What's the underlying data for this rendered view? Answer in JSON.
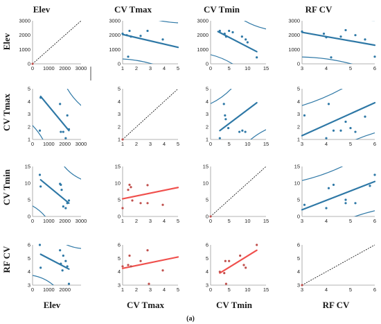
{
  "figure": {
    "caption": "(a)",
    "column_titles": [
      "Elev",
      "CV Tmax",
      "CV Tmin",
      "RF CV"
    ],
    "row_titles": [
      "Elev",
      "CV Tmax",
      "CV Tmin",
      "RF CV"
    ],
    "bottom_labels": [
      "Elev",
      "CV Tmax",
      "CV Tmin",
      "RF CV"
    ]
  },
  "chart_data": {
    "type": "scatter",
    "title": "",
    "variables": [
      "Elev",
      "CV Tmax",
      "CV Tmin",
      "RF CV"
    ],
    "axes": {
      "Elev": {
        "range": [
          0,
          3000
        ],
        "ticks": [
          0,
          1000,
          2000,
          3000
        ],
        "bottom_ticks": [
          0,
          1000,
          2000
        ]
      },
      "CV Tmax": {
        "range": [
          1,
          5
        ],
        "ticks": [
          1,
          2,
          3,
          4,
          5
        ]
      },
      "CV Tmin": {
        "range": [
          0,
          15
        ],
        "ticks": [
          0,
          5,
          10,
          15
        ],
        "left_ticks": [
          0,
          5,
          10,
          15
        ]
      },
      "RF CV": {
        "range": [
          3,
          6
        ],
        "ticks": [
          3,
          4,
          5,
          6
        ]
      }
    },
    "colors": {
      "upper": "#2e78a6",
      "lower_point": "#c0504d",
      "lower_line": "#f0504d",
      "diagonal": "#000000"
    },
    "variable_values": {
      "Elev": [
        450,
        500,
        1700,
        1750,
        1900,
        2050,
        2150,
        2250
      ],
      "CV Tmax": [
        1.7,
        4.3,
        3.8,
        1.6,
        1.6,
        1.1,
        2.9,
        1.8
      ],
      "CV Tmin": [
        12.5,
        9.0,
        9.8,
        9.5,
        3.0,
        2.5,
        4.0,
        4.8
      ],
      "RF CV": [
        6.0,
        4.2,
        5.6,
        4.6,
        5.2,
        4.4,
        4.8,
        3.1
      ]
    },
    "panels": [
      {
        "row": "Elev",
        "col": "CV Tmax",
        "points": [
          [
            1.0,
            2100
          ],
          [
            1.3,
            2000
          ],
          [
            1.5,
            2300
          ],
          [
            1.6,
            1900
          ],
          [
            2.3,
            1950
          ],
          [
            2.8,
            2300
          ],
          [
            3.9,
            1700
          ],
          [
            1.4,
            500
          ]
        ],
        "fit": [
          [
            1.0,
            2050
          ],
          [
            5.0,
            1150
          ]
        ]
      },
      {
        "row": "Elev",
        "col": "CV Tmin",
        "points": [
          [
            2.5,
            2300
          ],
          [
            3.8,
            2100
          ],
          [
            4.2,
            1900
          ],
          [
            5.0,
            2300
          ],
          [
            6.0,
            2200
          ],
          [
            8.5,
            1900
          ],
          [
            9.5,
            1700
          ],
          [
            12.5,
            450
          ],
          [
            10.0,
            1500
          ]
        ],
        "fit": [
          [
            2.0,
            2250
          ],
          [
            12.5,
            850
          ]
        ]
      },
      {
        "row": "Elev",
        "col": "RF CV",
        "points": [
          [
            3.0,
            2250
          ],
          [
            3.9,
            2100
          ],
          [
            4.0,
            1850
          ],
          [
            4.2,
            450
          ],
          [
            4.6,
            1900
          ],
          [
            4.8,
            2350
          ],
          [
            5.2,
            2000
          ],
          [
            5.6,
            1700
          ],
          [
            6.0,
            500
          ]
        ],
        "fit": [
          [
            3.0,
            2200
          ],
          [
            6.0,
            1300
          ]
        ]
      },
      {
        "row": "CV Tmax",
        "col": "Elev",
        "points": [
          [
            450,
            1.7
          ],
          [
            1700,
            3.8
          ],
          [
            1750,
            1.6
          ],
          [
            1900,
            1.6
          ],
          [
            2050,
            1.1
          ],
          [
            2150,
            2.9
          ],
          [
            2250,
            1.8
          ],
          [
            500,
            4.3
          ]
        ],
        "fit": [
          [
            500,
            4.4
          ],
          [
            2250,
            1.7
          ]
        ]
      },
      {
        "row": "CV Tmax",
        "col": "CV Tmin",
        "points": [
          [
            2.5,
            1.1
          ],
          [
            3.6,
            3.8
          ],
          [
            3.9,
            2.9
          ],
          [
            4.1,
            2.6
          ],
          [
            4.8,
            1.9
          ],
          [
            7.8,
            1.6
          ],
          [
            8.6,
            1.7
          ],
          [
            9.4,
            1.6
          ]
        ],
        "fit": [
          [
            2.5,
            1.7
          ],
          [
            12.5,
            3.9
          ]
        ]
      },
      {
        "row": "CV Tmax",
        "col": "RF CV",
        "points": [
          [
            3.1,
            2.9
          ],
          [
            4.0,
            1.1
          ],
          [
            4.1,
            3.8
          ],
          [
            4.3,
            1.7
          ],
          [
            4.6,
            1.7
          ],
          [
            4.8,
            2.4
          ],
          [
            5.0,
            1.9
          ],
          [
            5.2,
            1.6
          ],
          [
            5.6,
            2.8
          ]
        ],
        "fit": [
          [
            3.0,
            1.3
          ],
          [
            6.0,
            3.9
          ]
        ]
      },
      {
        "row": "CV Tmin",
        "col": "Elev",
        "points": [
          [
            450,
            12.5
          ],
          [
            500,
            9.0
          ],
          [
            1700,
            9.8
          ],
          [
            1750,
            9.5
          ],
          [
            1900,
            3.0
          ],
          [
            2050,
            2.5
          ],
          [
            2150,
            4.0
          ],
          [
            2250,
            4.8
          ],
          [
            1800,
            8.0
          ]
        ],
        "fit": [
          [
            500,
            11.0
          ],
          [
            2250,
            4.0
          ]
        ]
      },
      {
        "row": "CV Tmin",
        "col": "CV Tmax",
        "points": [
          [
            1.0,
            2.5
          ],
          [
            1.4,
            8.0
          ],
          [
            1.5,
            9.5
          ],
          [
            1.6,
            8.8
          ],
          [
            1.7,
            4.8
          ],
          [
            2.3,
            4.0
          ],
          [
            2.8,
            9.4
          ],
          [
            3.9,
            3.5
          ],
          [
            2.8,
            4.0
          ]
        ],
        "fit": [
          [
            1.0,
            5.3
          ],
          [
            5.0,
            8.7
          ]
        ]
      },
      {
        "row": "CV Tmin",
        "col": "RF CV",
        "points": [
          [
            3.1,
            3.5
          ],
          [
            4.0,
            2.5
          ],
          [
            4.1,
            8.5
          ],
          [
            4.3,
            9.5
          ],
          [
            4.8,
            5.0
          ],
          [
            5.2,
            4.0
          ],
          [
            5.8,
            9.2
          ],
          [
            6.0,
            12.5
          ],
          [
            4.8,
            4.0
          ]
        ],
        "fit": [
          [
            3.0,
            2.0
          ],
          [
            6.0,
            10.5
          ]
        ]
      },
      {
        "row": "RF CV",
        "col": "Elev",
        "points": [
          [
            450,
            6.0
          ],
          [
            500,
            4.3
          ],
          [
            1700,
            5.6
          ],
          [
            1750,
            4.6
          ],
          [
            1900,
            5.2
          ],
          [
            2050,
            4.8
          ],
          [
            2150,
            4.4
          ],
          [
            2250,
            3.1
          ],
          [
            1850,
            4.1
          ]
        ],
        "fit": [
          [
            500,
            5.3
          ],
          [
            2250,
            4.2
          ]
        ]
      },
      {
        "row": "RF CV",
        "col": "CV Tmax",
        "points": [
          [
            1.0,
            4.4
          ],
          [
            1.4,
            4.5
          ],
          [
            1.5,
            5.2
          ],
          [
            1.6,
            4.4
          ],
          [
            2.3,
            4.8
          ],
          [
            2.8,
            5.6
          ],
          [
            2.9,
            3.1
          ],
          [
            3.9,
            4.1
          ]
        ],
        "fit": [
          [
            1.0,
            4.25
          ],
          [
            5.0,
            5.1
          ]
        ]
      },
      {
        "row": "RF CV",
        "col": "CV Tmin",
        "points": [
          [
            2.5,
            4.0
          ],
          [
            3.7,
            3.9
          ],
          [
            4.0,
            4.8
          ],
          [
            4.2,
            3.1
          ],
          [
            5.0,
            4.8
          ],
          [
            8.0,
            5.2
          ],
          [
            9.0,
            4.5
          ],
          [
            9.5,
            4.3
          ],
          [
            12.5,
            6.0
          ]
        ],
        "fit": [
          [
            2.5,
            3.9
          ],
          [
            12.5,
            5.6
          ]
        ]
      }
    ],
    "legend": "none",
    "grid": false
  }
}
